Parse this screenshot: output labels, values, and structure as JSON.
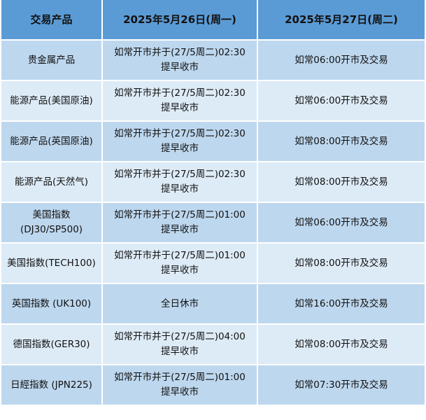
{
  "header": [
    "交易产品",
    "2025年5月26日(周一)",
    "2025年5月27日(周二)"
  ],
  "rows": [
    [
      "贵金属产品",
      "如常开市并于(27/5周二)02:30\n提早收市",
      "如常06:00开市及交易"
    ],
    [
      "能源产品(美国原油)",
      "如常开市并于(27/5周二)02:30\n提早收市",
      "如常06:00开市及交易"
    ],
    [
      "能源产品(英国原油)",
      "如常开市并于(27/5周二)02:30\n提早收市",
      "如常08:00开市及交易"
    ],
    [
      "能源产品(天然气)",
      "如常开市并于(27/5周二)02:30\n提早收市",
      "如常08:00开市及交易"
    ],
    [
      "美国指数\n(DJ30/SP500)",
      "如常开市并于(27/5周二)01:00\n提早收市",
      "如常06:00开市及交易"
    ],
    [
      "美国指数(TECH100)",
      "如常开市并于(27/5周二)01:00\n提早收市",
      "如常08:00开市及交易"
    ],
    [
      "英国指数 (UK100)",
      "全日休市",
      "如常16:00开市及交易"
    ],
    [
      "德国指数(GER30)",
      "如常开市并于(27/5周二)04:00\n提早收市",
      "如常08:00开市及交易"
    ],
    [
      "日經指数 (JPN225)",
      "如常开市并于(27/5周二)01:00\n提早收市",
      "如常07:30开市及交易"
    ]
  ],
  "colors": {
    "header": "#5b9bd5",
    "row_odd": "#bdd7ee",
    "row_even": "#ddebf7"
  }
}
